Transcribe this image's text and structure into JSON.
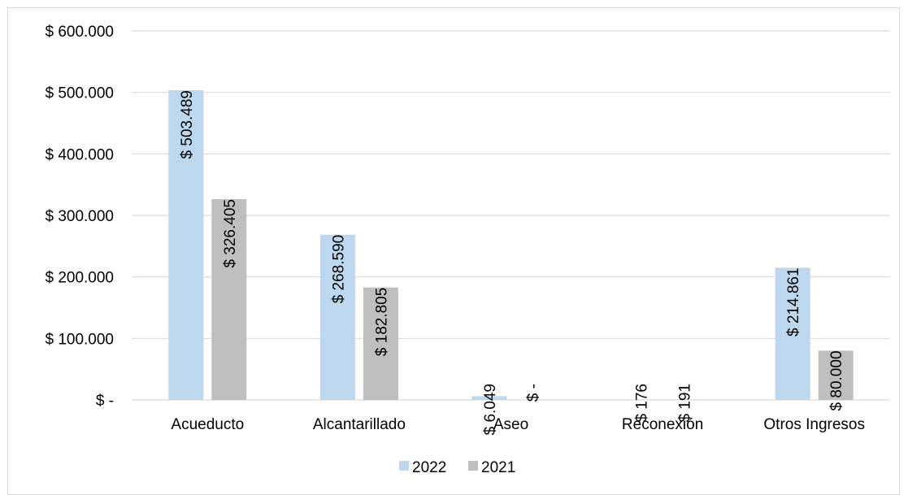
{
  "chart_data": {
    "type": "bar",
    "title": "",
    "xlabel": "",
    "ylabel": "",
    "categories": [
      "Acueducto",
      "Alcantarillado",
      "Aseo",
      "Reconexión",
      "Otros Ingresos"
    ],
    "series": [
      {
        "name": "2022",
        "color": "#bdd7ee",
        "values": [
          503489,
          268590,
          6049,
          176,
          214861
        ],
        "labels": [
          "$ 503.489",
          "$ 268.590",
          "$ 6.049",
          "$ 176",
          "$ 214.861"
        ]
      },
      {
        "name": "2021",
        "color": "#bfbfbf",
        "values": [
          326405,
          182805,
          0,
          191,
          80000
        ],
        "labels": [
          "$ 326.405",
          "$ 182.805",
          "$ -",
          "$ 191",
          "$ 80.000"
        ]
      }
    ],
    "ylim": [
      0,
      600000
    ],
    "y_ticks": [
      {
        "value": 0,
        "label": "$ -"
      },
      {
        "value": 100000,
        "label": "$ 100.000"
      },
      {
        "value": 200000,
        "label": "$ 200.000"
      },
      {
        "value": 300000,
        "label": "$ 300.000"
      },
      {
        "value": 400000,
        "label": "$ 400.000"
      },
      {
        "value": 500000,
        "label": "$ 500.000"
      },
      {
        "value": 600000,
        "label": "$ 600.000"
      }
    ],
    "grid": true,
    "legend_position": "bottom",
    "gridline_color": "#d9d9d9"
  }
}
